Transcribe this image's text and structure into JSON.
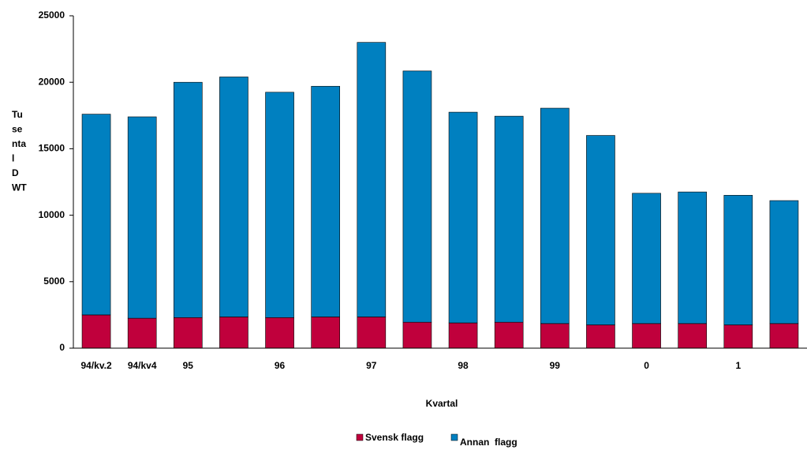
{
  "chart_data": {
    "type": "stacked_bar",
    "y_label_lines": [
      "Tu",
      "se",
      "nta",
      "l",
      "D",
      "WT"
    ],
    "x_label": "Kvartal",
    "categories": [
      "94/kv.2",
      "94/kv4",
      "95",
      null,
      "96",
      null,
      "97",
      null,
      "98",
      null,
      "99",
      null,
      "0",
      null,
      "1",
      null
    ],
    "series": [
      {
        "name": "Svensk flagg",
        "color": "#c0003c",
        "values": [
          2500,
          2250,
          2300,
          2350,
          2300,
          2350,
          2350,
          1950,
          1900,
          1950,
          1850,
          1750,
          1850,
          1850,
          1750,
          1850
        ]
      },
      {
        "name": "Annan  flagg",
        "color": "#0080c0",
        "values": [
          15100,
          15150,
          17700,
          18050,
          16950,
          17350,
          20650,
          18900,
          15850,
          15500,
          16200,
          14250,
          9800,
          9900,
          9750,
          9250
        ]
      }
    ],
    "ylim": [
      0,
      25000
    ],
    "yticks": [
      0,
      5000,
      10000,
      15000,
      20000,
      25000
    ],
    "grid": false
  }
}
